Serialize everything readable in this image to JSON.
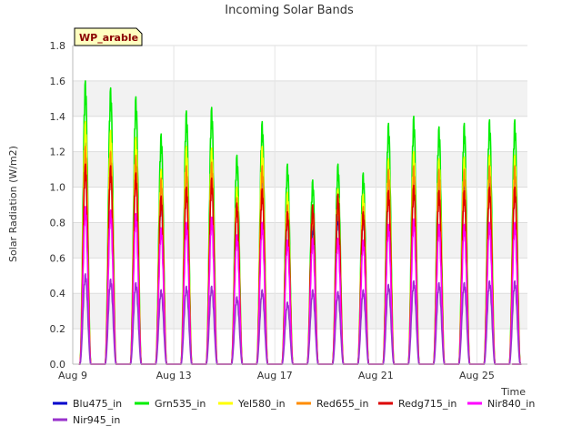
{
  "chart_data": {
    "type": "line",
    "title": "Incoming Solar Bands",
    "xlabel": "Time",
    "ylabel": "Solar Radiation (W/m2)",
    "site_label": "WP_arable",
    "x_range_days": [
      9,
      27
    ],
    "ylim": [
      0,
      1.8
    ],
    "y_ticks": [
      "0.0",
      "0.2",
      "0.4",
      "0.6",
      "0.8",
      "1.0",
      "1.2",
      "1.4",
      "1.6",
      "1.8"
    ],
    "x_ticks": [
      {
        "day": 9,
        "label": "Aug 9"
      },
      {
        "day": 13,
        "label": "Aug 13"
      },
      {
        "day": 17,
        "label": "Aug 17"
      },
      {
        "day": 21,
        "label": "Aug 21"
      },
      {
        "day": 25,
        "label": "Aug 25"
      }
    ],
    "grid": true,
    "legend_position": "bottom",
    "day_peaks": {
      "days": [
        9.5,
        10.5,
        11.5,
        12.5,
        13.5,
        14.5,
        15.5,
        16.5,
        17.5,
        18.5,
        19.5,
        20.5,
        21.5,
        22.5,
        23.5,
        24.5,
        25.5,
        26.5
      ],
      "note": "daily diurnal peaks"
    },
    "series": [
      {
        "name": "Blu475_in",
        "color": "#0000cc",
        "peaks": [
          1.25,
          1.22,
          1.18,
          0.95,
          1.12,
          1.12,
          0.94,
          1.12,
          0.86,
          0.8,
          0.86,
          0.86,
          1.12,
          1.12,
          1.12,
          1.08,
          1.1,
          1.12
        ]
      },
      {
        "name": "Grn535_in",
        "color": "#00ee00",
        "peaks": [
          1.6,
          1.56,
          1.51,
          1.3,
          1.43,
          1.45,
          1.18,
          1.37,
          1.13,
          1.04,
          1.13,
          1.08,
          1.36,
          1.4,
          1.34,
          1.36,
          1.38,
          1.38
        ]
      },
      {
        "name": "Yel580_in",
        "color": "#ffff00",
        "peaks": [
          1.37,
          1.32,
          1.28,
          1.1,
          1.23,
          1.22,
          1.0,
          1.23,
          0.97,
          0.9,
          0.99,
          0.96,
          1.16,
          1.2,
          1.16,
          1.17,
          1.18,
          1.18
        ]
      },
      {
        "name": "Red655_in",
        "color": "#ff8c00",
        "peaks": [
          1.23,
          1.2,
          1.18,
          1.05,
          1.12,
          1.14,
          0.94,
          1.12,
          0.9,
          0.86,
          0.92,
          0.89,
          1.1,
          1.12,
          1.1,
          1.1,
          1.12,
          1.12
        ]
      },
      {
        "name": "Redg715_in",
        "color": "#dd0000",
        "peaks": [
          1.13,
          1.12,
          1.08,
          0.95,
          1.0,
          1.05,
          0.91,
          0.99,
          0.86,
          0.9,
          0.96,
          0.86,
          0.98,
          1.01,
          0.98,
          0.98,
          1.0,
          1.0
        ]
      },
      {
        "name": "Nir840_in",
        "color": "#ff00ff",
        "peaks": [
          0.89,
          0.87,
          0.85,
          0.77,
          0.8,
          0.83,
          0.73,
          0.8,
          0.7,
          0.71,
          0.71,
          0.7,
          0.79,
          0.82,
          0.79,
          0.79,
          0.8,
          0.8
        ]
      },
      {
        "name": "Nir945_in",
        "color": "#9932cc",
        "peaks": [
          0.51,
          0.48,
          0.46,
          0.42,
          0.44,
          0.44,
          0.38,
          0.42,
          0.35,
          0.42,
          0.41,
          0.42,
          0.45,
          0.47,
          0.46,
          0.46,
          0.47,
          0.47
        ]
      }
    ]
  }
}
